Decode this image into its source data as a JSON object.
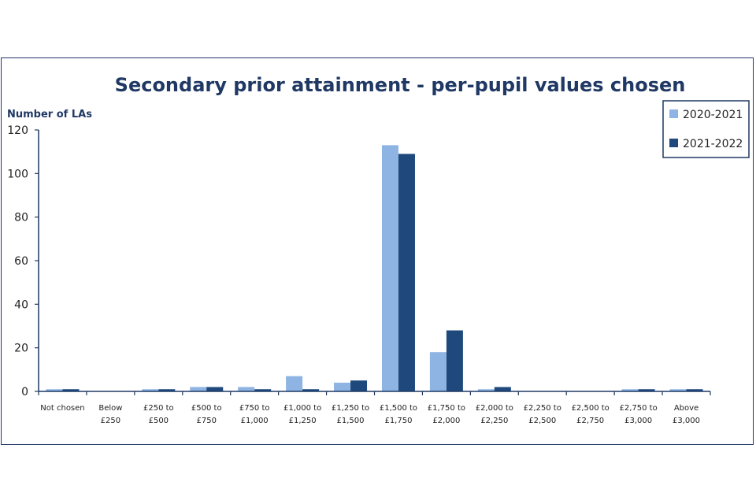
{
  "chart_data": {
    "type": "bar",
    "title": "Secondary prior attainment - per-pupil values chosen",
    "ylabel": "Number of LAs",
    "xlabel": "",
    "ylim": [
      0,
      120
    ],
    "yticks": [
      0,
      20,
      40,
      60,
      80,
      100,
      120
    ],
    "legend_position": "top-right",
    "categories": [
      [
        "Not chosen"
      ],
      [
        "Below",
        "£250"
      ],
      [
        "£250 to",
        "£500"
      ],
      [
        "£500 to",
        "£750"
      ],
      [
        "£750 to",
        "£1,000"
      ],
      [
        "£1,000 to",
        "£1,250"
      ],
      [
        "£1,250 to",
        "£1,500"
      ],
      [
        "£1,500 to",
        "£1,750"
      ],
      [
        "£1,750 to",
        "£2,000"
      ],
      [
        "£2,000 to",
        "£2,250"
      ],
      [
        "£2,250 to",
        "£2,500"
      ],
      [
        "£2,500 to",
        "£2,750"
      ],
      [
        "£2,750 to",
        "£3,000"
      ],
      [
        "Above",
        "£3,000"
      ]
    ],
    "series": [
      {
        "name": "2020-2021",
        "color": "#8eb4e3",
        "values": [
          1,
          0,
          1,
          2,
          2,
          7,
          4,
          113,
          18,
          1,
          0,
          0,
          1,
          1
        ]
      },
      {
        "name": "2021-2022",
        "color": "#1f497d",
        "values": [
          1,
          0,
          1,
          2,
          1,
          1,
          5,
          109,
          28,
          2,
          0,
          0,
          1,
          1
        ]
      }
    ],
    "axis_color": "#1f3864"
  }
}
